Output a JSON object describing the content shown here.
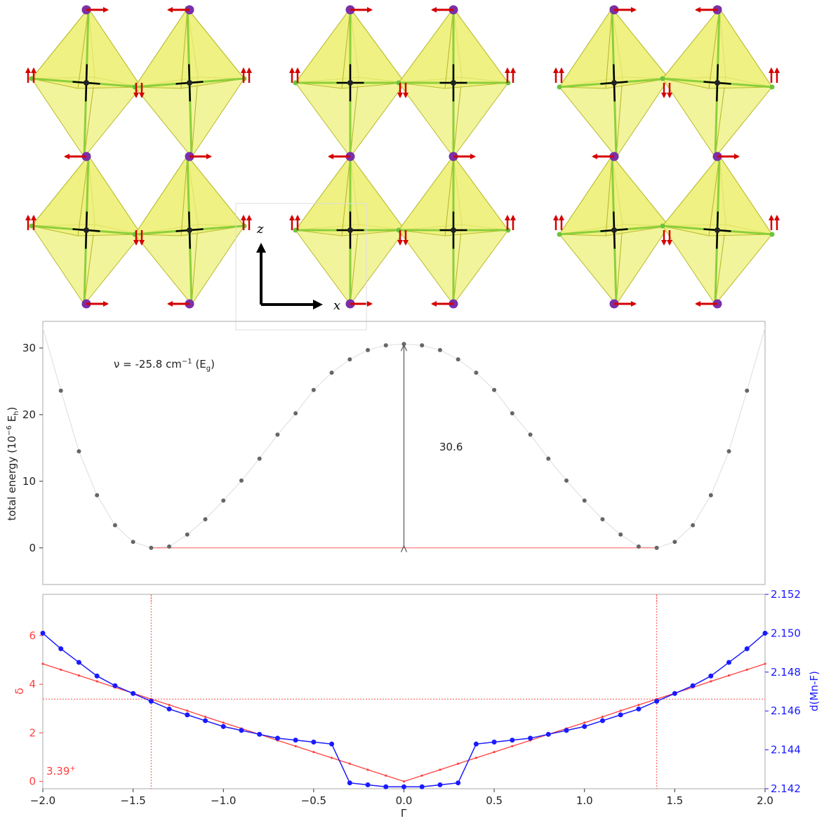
{
  "structure": {
    "panels": 3,
    "axis_triad": {
      "z_label": "z",
      "x_label": "x"
    },
    "colors": {
      "octahedron_fill": "#eef07a",
      "octahedron_edge": "#b8bb2e",
      "bond_mn_f": "#8ccf3a",
      "bond_core": "#000000",
      "atom_f": "#6cc43c",
      "atom_ca": "#7a2fa8",
      "arrow": "#d40000"
    }
  },
  "chart_data": [
    {
      "type": "scatter",
      "ylabel": "total energy (10",
      "ylabel_sup": "−6",
      "ylabel_tail": " E",
      "ylabel_sub": "h",
      "ylabel_close": ")",
      "ylim": [
        -5.5,
        34
      ],
      "xlim": [
        -2.0,
        2.0
      ],
      "yticks": [
        0,
        10,
        20,
        30
      ],
      "grid": false,
      "annotation_freq": {
        "prefix": "ν = -25.8 cm",
        "sup": "−1",
        "mid": " (E",
        "sub": "g",
        "suffix": ")"
      },
      "annotation_barrier": "30.6",
      "baseline": {
        "x": [
          -1.4,
          1.4
        ],
        "y": 0,
        "color": "#ff6060"
      },
      "barrier_arrow": {
        "x": 0.0,
        "y": [
          0,
          30.6
        ]
      },
      "series": [
        {
          "x": [
            -2.0,
            -1.9,
            -1.8,
            -1.7,
            -1.6,
            -1.5,
            -1.4,
            -1.3,
            -1.2,
            -1.1,
            -1.0,
            -0.9,
            -0.8,
            -0.7,
            -0.6,
            -0.5,
            -0.4,
            -0.3,
            -0.2,
            -0.1,
            0.0,
            0.1,
            0.2,
            0.3,
            0.4,
            0.5,
            0.6,
            0.7,
            0.8,
            0.9,
            1.0,
            1.1,
            1.2,
            1.3,
            1.4,
            1.5,
            1.6,
            1.7,
            1.8,
            1.9,
            2.0
          ],
          "values": [
            33.0,
            23.6,
            14.5,
            7.9,
            3.4,
            0.9,
            0.0,
            0.2,
            2.0,
            4.3,
            7.1,
            10.1,
            13.4,
            17.0,
            20.2,
            23.7,
            26.3,
            28.3,
            29.7,
            30.4,
            30.6,
            30.4,
            29.7,
            28.3,
            26.3,
            23.7,
            20.2,
            17.0,
            13.4,
            10.1,
            7.1,
            4.3,
            2.0,
            0.2,
            0.0,
            0.9,
            3.4,
            7.9,
            14.5,
            23.6,
            33.0
          ]
        }
      ]
    },
    {
      "type": "line",
      "xlabel": "Γ",
      "ylabel": "δ",
      "ylabel_right": "d(Mn-F)",
      "xlim": [
        -2.0,
        2.0
      ],
      "ylim": [
        -0.3,
        7.7
      ],
      "ylim_right": [
        2.142,
        2.152
      ],
      "xticks": [
        -2.0,
        -1.5,
        -1.0,
        -0.5,
        0.0,
        0.5,
        1.0,
        1.5,
        2.0
      ],
      "xtick_labels": [
        "−2.0",
        "−1.5",
        "−1.0",
        "−0.5",
        "0.0",
        "0.5",
        "1.0",
        "1.5",
        "2.0"
      ],
      "yticks": [
        0,
        2,
        4,
        6
      ],
      "yticks_right": [
        "2.142",
        "2.144",
        "2.146",
        "2.148",
        "2.150",
        "2.152"
      ],
      "annotation": "3.39",
      "annotation_sup": "+",
      "guides": {
        "vlines": [
          -1.4,
          1.4
        ],
        "hline": 3.39
      },
      "series": [
        {
          "name": "δ",
          "color": "#ff4040",
          "axis": "left",
          "x": [
            -2.0,
            -1.9,
            -1.8,
            -1.7,
            -1.6,
            -1.5,
            -1.4,
            -1.3,
            -1.2,
            -1.1,
            -1.0,
            -0.9,
            -0.8,
            -0.7,
            -0.6,
            -0.5,
            -0.4,
            -0.3,
            -0.2,
            -0.1,
            0.0,
            0.1,
            0.2,
            0.3,
            0.4,
            0.5,
            0.6,
            0.7,
            0.8,
            0.9,
            1.0,
            1.1,
            1.2,
            1.3,
            1.4,
            1.5,
            1.6,
            1.7,
            1.8,
            1.9,
            2.0
          ],
          "values": [
            4.84,
            4.6,
            4.36,
            4.12,
            3.87,
            3.63,
            3.39,
            3.15,
            2.91,
            2.66,
            2.42,
            2.18,
            1.94,
            1.69,
            1.45,
            1.21,
            0.97,
            0.73,
            0.48,
            0.24,
            0.0,
            0.24,
            0.48,
            0.73,
            0.97,
            1.21,
            1.45,
            1.69,
            1.94,
            2.18,
            2.42,
            2.66,
            2.91,
            3.15,
            3.39,
            3.63,
            3.87,
            4.12,
            4.36,
            4.6,
            4.84
          ]
        },
        {
          "name": "d(Mn-F)",
          "color": "#1a1aff",
          "axis": "right",
          "x": [
            -2.0,
            -1.9,
            -1.8,
            -1.7,
            -1.6,
            -1.5,
            -1.4,
            -1.3,
            -1.2,
            -1.1,
            -1.0,
            -0.9,
            -0.8,
            -0.7,
            -0.6,
            -0.5,
            -0.4,
            -0.3,
            -0.2,
            -0.1,
            0.0,
            0.1,
            0.2,
            0.3,
            0.4,
            0.5,
            0.6,
            0.7,
            0.8,
            0.9,
            1.0,
            1.1,
            1.2,
            1.3,
            1.4,
            1.5,
            1.6,
            1.7,
            1.8,
            1.9,
            2.0
          ],
          "values": [
            2.15,
            2.1492,
            2.1485,
            2.1478,
            2.1473,
            2.1469,
            2.1465,
            2.1461,
            2.1458,
            2.1455,
            2.1452,
            2.145,
            2.1448,
            2.1446,
            2.1445,
            2.1444,
            2.1443,
            2.1423,
            2.1422,
            2.1421,
            2.1421,
            2.1421,
            2.1422,
            2.1423,
            2.1443,
            2.1444,
            2.1445,
            2.1446,
            2.1448,
            2.145,
            2.1452,
            2.1455,
            2.1458,
            2.1461,
            2.1465,
            2.1469,
            2.1473,
            2.1478,
            2.1485,
            2.1492,
            2.15
          ]
        }
      ]
    }
  ]
}
